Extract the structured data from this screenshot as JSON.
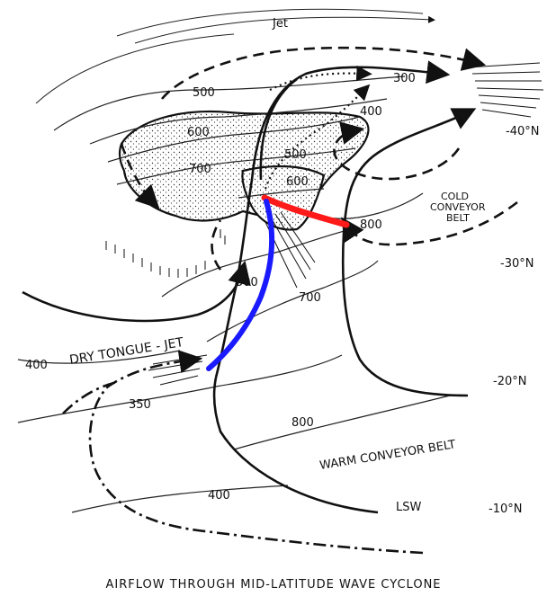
{
  "figure": {
    "title": "AIRFLOW THROUGH MID-LATITUDE WAVE CYCLONE",
    "labels": {
      "jet": "Jet",
      "dry_tongue_jet": "DRY TONGUE - JET",
      "warm_conveyor_belt": "WARM CONVEYOR BELT",
      "cold_conveyor_belt_1": "COLD",
      "cold_conveyor_belt_2": "CONVEYOR",
      "cold_conveyor_belt_3": "BELT",
      "lsw": "LSW"
    },
    "latitudes": [
      "-40°N",
      "-30°N",
      "-20°N",
      "-10°N"
    ],
    "isobars": {
      "p300": "300",
      "p400_top": "400",
      "p500_top": "500",
      "p600_top": "600",
      "p700_top": "700",
      "p500_mid": "500",
      "p600_mid": "600",
      "p800_right": "800",
      "p500_left": "500",
      "p700_mid": "700",
      "p400_left": "400",
      "p350": "350",
      "p800_bottom": "800",
      "p400_bottom": "400"
    },
    "colors": {
      "red_front": "#ff1a1a",
      "blue_front": "#1a1aff",
      "ink": "#111111"
    }
  }
}
